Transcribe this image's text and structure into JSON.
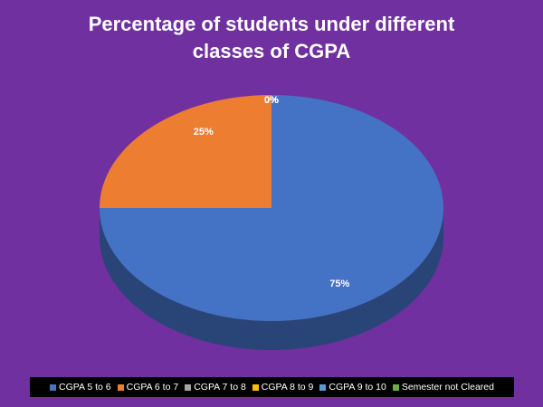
{
  "chart_data": {
    "type": "pie",
    "title": "Percentage of students under different classes of CGPA",
    "categories": [
      "CGPA 5 to 6",
      "CGPA 6 to 7",
      "CGPA 7 to 8",
      "CGPA 8 to 9",
      "CGPA 9 to 10",
      "Semester not Cleared"
    ],
    "values": [
      75,
      25,
      0,
      0,
      0,
      0
    ],
    "value_labels": [
      "75%",
      "25%",
      "0%",
      "0%",
      "0%",
      "0%"
    ],
    "colors": [
      "#4472c4",
      "#ed7d31",
      "#a5a5a5",
      "#ffc000",
      "#5b9bd5",
      "#70ad47"
    ],
    "legend": "bottom"
  }
}
